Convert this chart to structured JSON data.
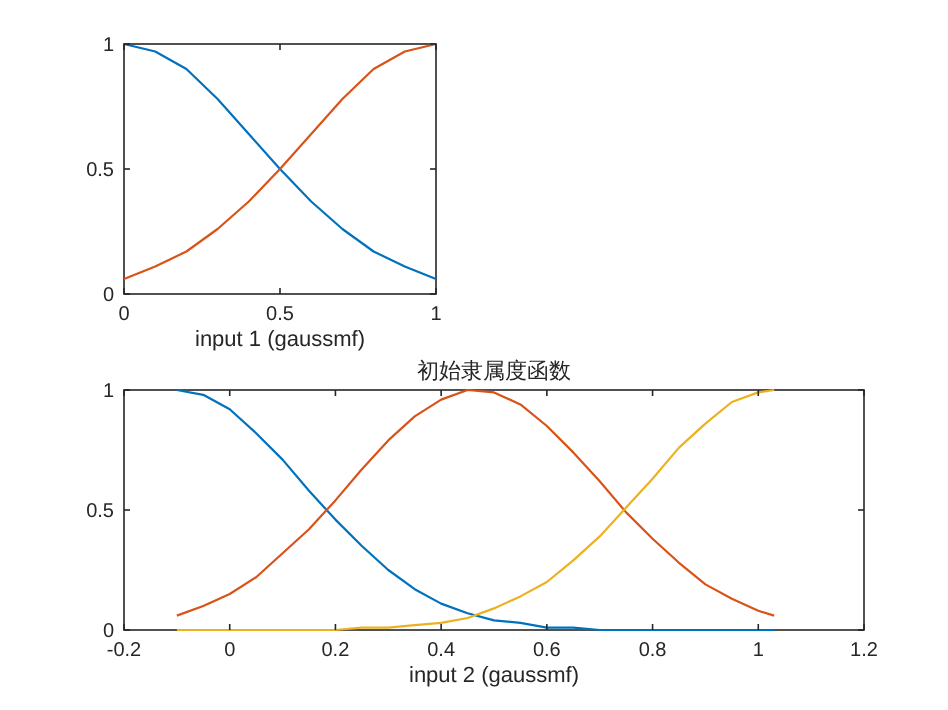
{
  "chart_data": [
    {
      "type": "line",
      "xlabel": "input 1 (gaussmf)",
      "xlim": [
        0,
        1
      ],
      "ylim": [
        0,
        1
      ],
      "xticks": [
        0,
        0.5,
        1
      ],
      "yticks": [
        0,
        0.5,
        1
      ],
      "x": [
        0,
        0.1,
        0.2,
        0.3,
        0.4,
        0.5,
        0.6,
        0.7,
        0.8,
        0.9,
        1
      ],
      "series": [
        {
          "color": "#0072bd",
          "values": [
            1,
            0.97,
            0.9,
            0.78,
            0.64,
            0.5,
            0.37,
            0.26,
            0.17,
            0.11,
            0.06
          ]
        },
        {
          "color": "#d95319",
          "values": [
            0.06,
            0.11,
            0.17,
            0.26,
            0.37,
            0.5,
            0.64,
            0.78,
            0.9,
            0.97,
            1
          ]
        }
      ]
    },
    {
      "type": "line",
      "title": "初始隶属度函数",
      "xlabel": "input 2 (gaussmf)",
      "xlim": [
        -0.2,
        1.2
      ],
      "ylim": [
        0,
        1
      ],
      "xticks": [
        -0.2,
        0,
        0.2,
        0.4,
        0.6,
        0.8,
        1,
        1.2
      ],
      "yticks": [
        0,
        0.5,
        1
      ],
      "x": [
        -0.1,
        -0.05,
        0,
        0.05,
        0.1,
        0.15,
        0.2,
        0.25,
        0.3,
        0.35,
        0.4,
        0.45,
        0.5,
        0.55,
        0.6,
        0.65,
        0.7,
        0.75,
        0.8,
        0.85,
        0.9,
        0.95,
        1,
        1.03
      ],
      "series": [
        {
          "color": "#0072bd",
          "values": [
            1,
            0.98,
            0.92,
            0.82,
            0.71,
            0.58,
            0.46,
            0.35,
            0.25,
            0.17,
            0.11,
            0.07,
            0.04,
            0.03,
            0.01,
            0.01,
            0,
            0,
            0,
            0,
            0,
            0,
            0,
            0
          ]
        },
        {
          "color": "#d95319",
          "values": [
            0.06,
            0.1,
            0.15,
            0.22,
            0.32,
            0.42,
            0.54,
            0.67,
            0.79,
            0.89,
            0.96,
            1,
            0.99,
            0.94,
            0.85,
            0.74,
            0.62,
            0.49,
            0.38,
            0.28,
            0.19,
            0.13,
            0.08,
            0.06
          ]
        },
        {
          "color": "#edb120",
          "values": [
            0,
            0,
            0,
            0,
            0,
            0,
            0,
            0.01,
            0.01,
            0.02,
            0.03,
            0.05,
            0.09,
            0.14,
            0.2,
            0.29,
            0.39,
            0.51,
            0.63,
            0.76,
            0.86,
            0.95,
            0.99,
            1
          ]
        }
      ]
    }
  ]
}
